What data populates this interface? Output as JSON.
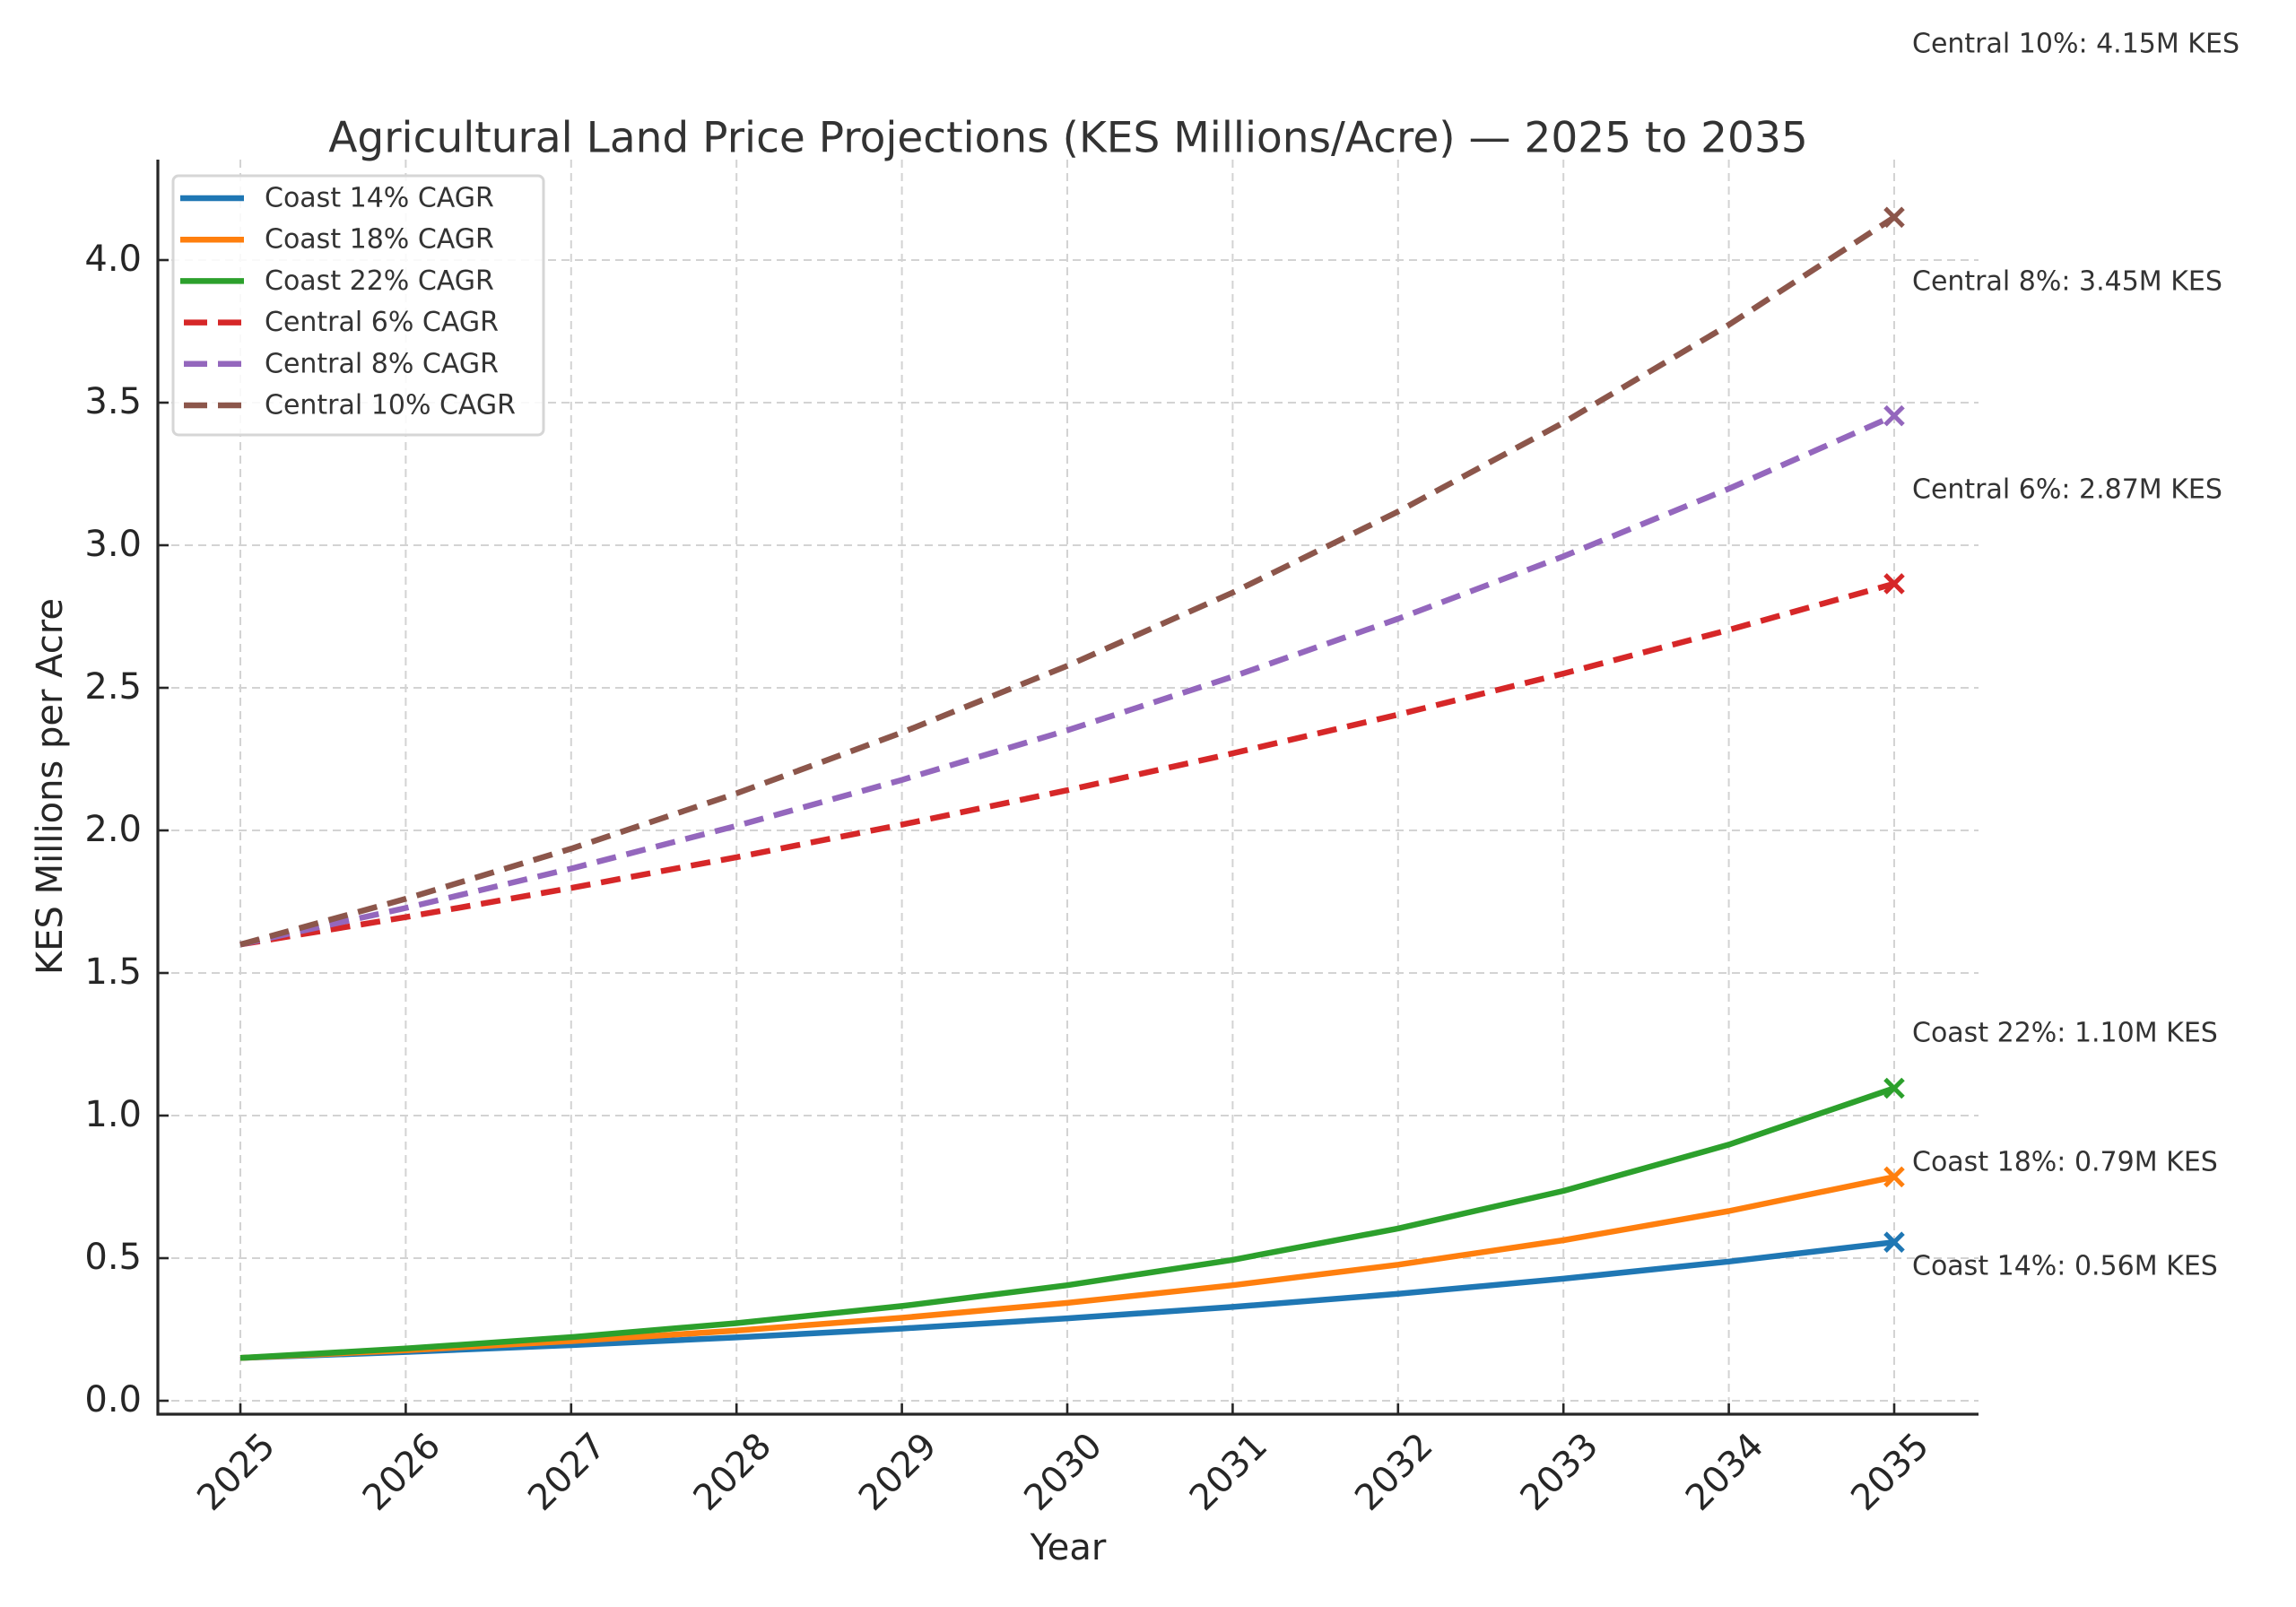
{
  "chart_data": {
    "type": "line",
    "title": "Agricultural Land Price Projections (KES Millions/Acre) — 2025 to 2035",
    "xlabel": "Year",
    "ylabel": "KES Millions per Acre",
    "x": [
      2025,
      2026,
      2027,
      2028,
      2029,
      2030,
      2031,
      2032,
      2033,
      2034,
      2035
    ],
    "x_tick_labels": [
      "2025",
      "2026",
      "2027",
      "2028",
      "2029",
      "2030",
      "2031",
      "2032",
      "2033",
      "2034",
      "2035"
    ],
    "y_ticks": [
      0.0,
      0.5,
      1.0,
      1.5,
      2.0,
      2.5,
      3.0,
      3.5,
      4.0
    ],
    "y_tick_labels": [
      "0.0",
      "0.5",
      "1.0",
      "1.5",
      "2.0",
      "2.5",
      "3.0",
      "3.5",
      "4.0"
    ],
    "xlim": [
      2024.5,
      2036.3
    ],
    "ylim": [
      -0.04,
      4.35
    ],
    "grid": true,
    "legend_position": "top-left",
    "series": [
      {
        "name": "Coast 14% CAGR",
        "color": "#1f77b4",
        "style": "solid",
        "values": [
          0.15,
          0.171,
          0.195,
          0.222,
          0.253,
          0.289,
          0.329,
          0.375,
          0.428,
          0.488,
          0.556
        ]
      },
      {
        "name": "Coast 18% CAGR",
        "color": "#ff7f0e",
        "style": "solid",
        "values": [
          0.15,
          0.177,
          0.209,
          0.246,
          0.291,
          0.343,
          0.405,
          0.477,
          0.563,
          0.665,
          0.785
        ]
      },
      {
        "name": "Coast 22% CAGR",
        "color": "#2ca02c",
        "style": "solid",
        "values": [
          0.15,
          0.183,
          0.223,
          0.272,
          0.332,
          0.405,
          0.494,
          0.604,
          0.736,
          0.898,
          1.096
        ]
      },
      {
        "name": "Central 6% CAGR",
        "color": "#d62728",
        "style": "dashed",
        "values": [
          1.6,
          1.696,
          1.798,
          1.906,
          2.02,
          2.141,
          2.27,
          2.406,
          2.55,
          2.703,
          2.865
        ]
      },
      {
        "name": "Central 8% CAGR",
        "color": "#9467bd",
        "style": "dashed",
        "values": [
          1.6,
          1.728,
          1.866,
          2.016,
          2.177,
          2.351,
          2.539,
          2.742,
          2.961,
          3.198,
          3.454
        ]
      },
      {
        "name": "Central 10% CAGR",
        "color": "#8c564b",
        "style": "dashed",
        "values": [
          1.6,
          1.76,
          1.936,
          2.13,
          2.343,
          2.577,
          2.834,
          3.118,
          3.43,
          3.773,
          4.15
        ]
      }
    ],
    "end_markers": {
      "symbol": "x",
      "x": 2035
    },
    "annotations": [
      {
        "series": "Central 10% CAGR",
        "text": "Central 10%: 4.15M KES"
      },
      {
        "series": "Central 8% CAGR",
        "text": "Central 8%: 3.45M KES"
      },
      {
        "series": "Central 6% CAGR",
        "text": "Central 6%: 2.87M KES"
      },
      {
        "series": "Coast 22% CAGR",
        "text": "Coast 22%: 1.10M KES"
      },
      {
        "series": "Coast 18% CAGR",
        "text": "Coast 18%: 0.79M KES"
      },
      {
        "series": "Coast 14% CAGR",
        "text": "Coast 14%: 0.56M KES"
      }
    ]
  }
}
